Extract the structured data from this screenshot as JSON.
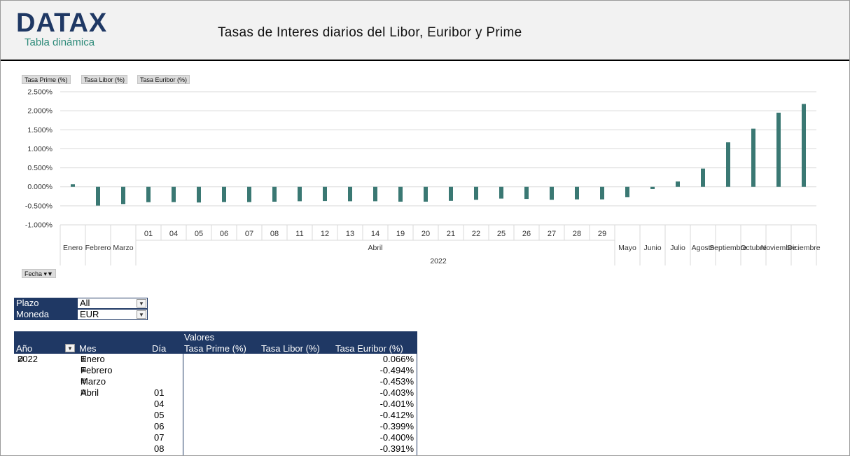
{
  "header": {
    "logo": "DATAX",
    "logo_subtitle": "Tabla dinámica",
    "title": "Tasas de Interes diarios del Libor, Euribor y Prime"
  },
  "chart_fields": [
    "Tasa Prime (%)",
    "Tasa Libor (%)",
    "Tasa Euribor (%)"
  ],
  "axis_field": "Fecha",
  "colors": {
    "bar": "#3a7873",
    "header_blue": "#1f3864"
  },
  "chart_data": {
    "type": "bar",
    "ylim": [
      -1.0,
      2.5
    ],
    "yticks": [
      "-1.000%",
      "-0.500%",
      "0.000%",
      "0.500%",
      "1.000%",
      "1.500%",
      "2.000%",
      "2.500%"
    ],
    "grid": true,
    "year_label": "2022",
    "month_group_label": "Abril",
    "bars": [
      {
        "month": "Enero",
        "day": "",
        "value": 0.066
      },
      {
        "month": "Febrero",
        "day": "",
        "value": -0.494
      },
      {
        "month": "Marzo",
        "day": "",
        "value": -0.453
      },
      {
        "month": "Abril",
        "day": "01",
        "value": -0.403
      },
      {
        "month": "Abril",
        "day": "04",
        "value": -0.401
      },
      {
        "month": "Abril",
        "day": "05",
        "value": -0.412
      },
      {
        "month": "Abril",
        "day": "06",
        "value": -0.399
      },
      {
        "month": "Abril",
        "day": "07",
        "value": -0.4
      },
      {
        "month": "Abril",
        "day": "08",
        "value": -0.391
      },
      {
        "month": "Abril",
        "day": "11",
        "value": -0.38
      },
      {
        "month": "Abril",
        "day": "12",
        "value": -0.375
      },
      {
        "month": "Abril",
        "day": "13",
        "value": -0.38
      },
      {
        "month": "Abril",
        "day": "14",
        "value": -0.38
      },
      {
        "month": "Abril",
        "day": "19",
        "value": -0.39
      },
      {
        "month": "Abril",
        "day": "20",
        "value": -0.39
      },
      {
        "month": "Abril",
        "day": "21",
        "value": -0.37
      },
      {
        "month": "Abril",
        "day": "22",
        "value": -0.34
      },
      {
        "month": "Abril",
        "day": "25",
        "value": -0.31
      },
      {
        "month": "Abril",
        "day": "26",
        "value": -0.32
      },
      {
        "month": "Abril",
        "day": "27",
        "value": -0.34
      },
      {
        "month": "Abril",
        "day": "28",
        "value": -0.33
      },
      {
        "month": "Abril",
        "day": "29",
        "value": -0.33
      },
      {
        "month": "Mayo",
        "day": "",
        "value": -0.27
      },
      {
        "month": "Junio",
        "day": "",
        "value": -0.06
      },
      {
        "month": "Julio",
        "day": "",
        "value": 0.14
      },
      {
        "month": "Agosto",
        "day": "",
        "value": 0.48
      },
      {
        "month": "Septiembre",
        "day": "",
        "value": 1.17
      },
      {
        "month": "Octubre",
        "day": "",
        "value": 1.53
      },
      {
        "month": "Noviembre",
        "day": "",
        "value": 1.95
      },
      {
        "month": "Diciembre",
        "day": "",
        "value": 2.18
      }
    ]
  },
  "filters": [
    {
      "label": "Plazo",
      "value": "All",
      "icon": "dropdown-arrow-icon"
    },
    {
      "label": "Moneda",
      "value": "EUR",
      "icon": "filter-icon"
    }
  ],
  "pivot": {
    "valores_label": "Valores",
    "headers": {
      "year": "Año",
      "month": "Mes",
      "day": "Día",
      "prime": "Tasa Prime (%)",
      "libor": "Tasa Libor (%)",
      "euribor": "Tasa Euribor (%)"
    },
    "rows": [
      {
        "year": "2022",
        "month": "Enero",
        "day": "",
        "euribor": "0.066%"
      },
      {
        "year": "",
        "month": "Febrero",
        "day": "",
        "euribor": "-0.494%"
      },
      {
        "year": "",
        "month": "Marzo",
        "day": "",
        "euribor": "-0.453%"
      },
      {
        "year": "",
        "month": "Abril",
        "day": "01",
        "euribor": "-0.403%"
      },
      {
        "year": "",
        "month": "",
        "day": "04",
        "euribor": "-0.401%"
      },
      {
        "year": "",
        "month": "",
        "day": "05",
        "euribor": "-0.412%"
      },
      {
        "year": "",
        "month": "",
        "day": "06",
        "euribor": "-0.399%"
      },
      {
        "year": "",
        "month": "",
        "day": "07",
        "euribor": "-0.400%"
      },
      {
        "year": "",
        "month": "",
        "day": "08",
        "euribor": "-0.391%"
      }
    ]
  }
}
